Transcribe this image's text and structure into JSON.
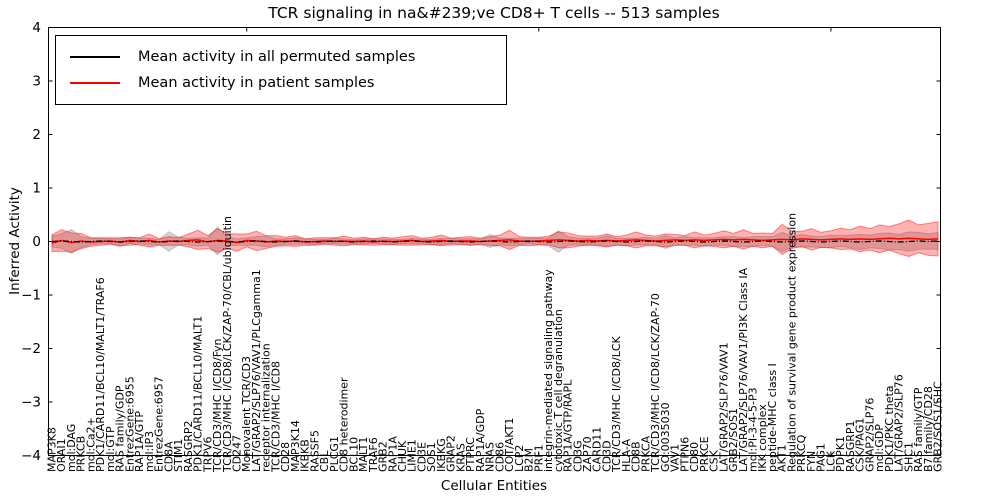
{
  "chart_data": {
    "type": "line",
    "title": "TCR signaling in na&#239;ve CD8+ T cells -- 513 samples",
    "xlabel": "Cellular Entities",
    "ylabel": "Inferred Activity",
    "ylim": [
      -4,
      4
    ],
    "yticks": [
      -4,
      -3,
      -2,
      -1,
      0,
      1,
      2,
      3,
      4
    ],
    "xtick_indices": [
      20,
      50,
      80
    ],
    "grid": false,
    "legend_position": "upper left",
    "legend": [
      {
        "label": "Mean activity in all permuted samples",
        "color": "#000000"
      },
      {
        "label": "Mean activity in patient samples",
        "color": "#ff0000"
      }
    ],
    "categories": [
      "MAP3K8",
      "ORAI1",
      "mol:DAG",
      "PRKCB",
      "mol:Ca2+",
      "PDK1/CARD11/BCL10/MALT1/TRAF6",
      "mol:GTP",
      "RAS family/GDP",
      "EntrezGene:6955",
      "RAP1A/GTP",
      "mol:IP3",
      "EntrezGene:6957",
      "CD8A",
      "STIM1",
      "RASGRP2",
      "PDK1/CARD11/BCL10/MALT1",
      "TRPV6",
      "TCR/CD3/MHC I/CD8/Fyn",
      "TCR/CD3/MHC I/CD8/LCK/ZAP-70/CBL/ubiquitin",
      "CD247",
      "Monovalent TCR/CD3",
      "LAT/GRAP2/SLP76/VAV1/PLCgamma1",
      "receptor internalization",
      "TCR/CD3/MHC I/CD8",
      "CD28",
      "MAP3K14",
      "IKBKB",
      "RASSF5",
      "CBL",
      "PLCG1",
      "CD8 heterodimer",
      "BCL10",
      "MALT1",
      "TRAF6",
      "GRB2",
      "RAP1A",
      "CHUK",
      "LIME1",
      "CD3E",
      "SOS1",
      "IKBKG",
      "GRAP2",
      "KRAS",
      "PTPRC",
      "RAP1A/GDP",
      "NRAS",
      "CD86",
      "COT/AKT1",
      "LCP2",
      "B2M",
      "PRF1",
      "integrin-mediated signaling pathway",
      "cytotoxic T cell degranulation",
      "RAP1A/GTP/RAPL",
      "CD3G",
      "ZAP70",
      "CARD11",
      "CD3D",
      "TCR/CD3/MHC I/CD8/LCK",
      "HLA-A",
      "CD8B",
      "PRKCA",
      "TCR/CD3/MHC I/CD8/LCK/ZAP-70",
      "GO:0035030",
      "VAV1",
      "PTPN6",
      "CD80",
      "PRKCE",
      "CSK",
      "LAT/GRAP2/SLP76/VAV1",
      "GRB2/SOS1",
      "LAT/GRAP2/SLP76/VAV1/PI3K Class IA",
      "mol:PI-3-4-5-P3",
      "IKK complex",
      "peptide-MHC class I",
      "AKT1",
      "Regulation of survival gene product expression",
      "PRKCQ",
      "FYN",
      "PAG1",
      "LCK",
      "PDPK1",
      "RASGRP1",
      "CSK/PAG1",
      "GRAP2/SLP76",
      "mol:GDP",
      "PDK1/PKC theta",
      "LAT/GRAP2/SLP76",
      "SHC1",
      "RAS family/GTP",
      "B7 family/CD28",
      "GRB2/SOS1/SHC"
    ],
    "series": [
      {
        "name": "Mean activity in all permuted samples",
        "color": "#000000",
        "band_color": "#888888",
        "values": [
          0,
          0.01,
          0,
          -0.01,
          0,
          0.01,
          0,
          -0.01,
          0,
          0.01,
          0,
          -0.01,
          0,
          0.01,
          0,
          -0.01,
          0,
          0.01,
          0,
          -0.01,
          0,
          0.01,
          0,
          -0.01,
          0,
          0.01,
          0,
          -0.01,
          0,
          0.01,
          0,
          -0.01,
          0,
          0.01,
          0,
          -0.01,
          0,
          0.01,
          0,
          -0.01,
          0,
          0.01,
          0,
          -0.01,
          0,
          0.01,
          0,
          -0.01,
          0,
          0.01,
          0,
          -0.01,
          0,
          0.01,
          0,
          -0.01,
          0,
          0.01,
          0,
          -0.01,
          0,
          0.01,
          0,
          -0.01,
          0,
          0.01,
          0,
          -0.01,
          0,
          0.01,
          0,
          -0.01,
          0,
          0.01,
          0,
          -0.01,
          0,
          0.01,
          0,
          -0.01,
          0,
          0.01,
          0,
          -0.01,
          0,
          0.01,
          0,
          -0.01,
          0,
          0.01,
          0,
          0.01
        ],
        "band": [
          0.1,
          0.14,
          0.22,
          0.1,
          0.06,
          0.05,
          0.05,
          0.06,
          0.08,
          0.05,
          0.06,
          0.05,
          0.18,
          0.07,
          0.06,
          0.08,
          0.07,
          0.26,
          0.08,
          0.06,
          0.07,
          0.08,
          0.1,
          0.06,
          0.05,
          0.06,
          0.05,
          0.05,
          0.04,
          0.05,
          0.05,
          0.04,
          0.05,
          0.04,
          0.05,
          0.05,
          0.04,
          0.05,
          0.04,
          0.05,
          0.06,
          0.05,
          0.05,
          0.06,
          0.05,
          0.12,
          0.06,
          0.07,
          0.06,
          0.05,
          0.06,
          0.07,
          0.2,
          0.08,
          0.06,
          0.07,
          0.06,
          0.1,
          0.06,
          0.07,
          0.06,
          0.07,
          0.06,
          0.12,
          0.07,
          0.08,
          0.07,
          0.08,
          0.07,
          0.08,
          0.09,
          0.08,
          0.09,
          0.08,
          0.09,
          0.18,
          0.1,
          0.12,
          0.1,
          0.1,
          0.12,
          0.1,
          0.12,
          0.14,
          0.12,
          0.14,
          0.16,
          0.14,
          0.18,
          0.16,
          0.14,
          0.16
        ]
      },
      {
        "name": "Mean activity in patient samples",
        "color": "#ff0000",
        "band_color": "#ff0000",
        "values": [
          -0.03,
          0.02,
          -0.02,
          0.01,
          -0.01,
          0,
          0.01,
          -0.01,
          0.02,
          0,
          0.02,
          -0.01,
          0.01,
          0,
          0.02,
          0.03,
          -0.01,
          0.02,
          0.01,
          -0.02,
          0.02,
          0.01,
          -0.01,
          0.01,
          0,
          0.01,
          -0.01,
          0,
          0.01,
          0,
          0.01,
          0,
          0.01,
          -0.01,
          0.01,
          0,
          0.01,
          0.02,
          0,
          0.01,
          0.02,
          0,
          0.01,
          0.01,
          0,
          0.01,
          0.02,
          0.03,
          0.01,
          0,
          0.01,
          0.02,
          0.03,
          0.02,
          0.01,
          0.02,
          0.01,
          0.02,
          0.01,
          0.02,
          0.03,
          0.02,
          0.01,
          0.02,
          0.03,
          0.02,
          0.03,
          0.02,
          0.03,
          0.04,
          0.03,
          0.04,
          0.03,
          0.02,
          0.03,
          0.04,
          0.03,
          0.05,
          0.04,
          0.03,
          0.04,
          0.05,
          0.04,
          0.05,
          0.04,
          0.05,
          0.06,
          0.05,
          0.06,
          0.05,
          0.04,
          0.05
        ],
        "band": [
          0.16,
          0.2,
          0.18,
          0.14,
          0.08,
          0.07,
          0.06,
          0.08,
          0.06,
          0.07,
          0.12,
          0.06,
          0.08,
          0.07,
          0.12,
          0.18,
          0.12,
          0.22,
          0.14,
          0.16,
          0.12,
          0.18,
          0.12,
          0.1,
          0.08,
          0.1,
          0.06,
          0.07,
          0.06,
          0.07,
          0.09,
          0.06,
          0.07,
          0.06,
          0.07,
          0.06,
          0.08,
          0.09,
          0.06,
          0.07,
          0.1,
          0.06,
          0.07,
          0.08,
          0.06,
          0.08,
          0.1,
          0.18,
          0.08,
          0.08,
          0.07,
          0.08,
          0.15,
          0.14,
          0.1,
          0.08,
          0.09,
          0.12,
          0.08,
          0.1,
          0.15,
          0.1,
          0.09,
          0.12,
          0.1,
          0.09,
          0.15,
          0.1,
          0.12,
          0.16,
          0.12,
          0.18,
          0.12,
          0.14,
          0.12,
          0.28,
          0.16,
          0.14,
          0.2,
          0.14,
          0.16,
          0.2,
          0.18,
          0.24,
          0.2,
          0.26,
          0.22,
          0.28,
          0.34,
          0.26,
          0.3,
          0.32
        ]
      }
    ]
  }
}
